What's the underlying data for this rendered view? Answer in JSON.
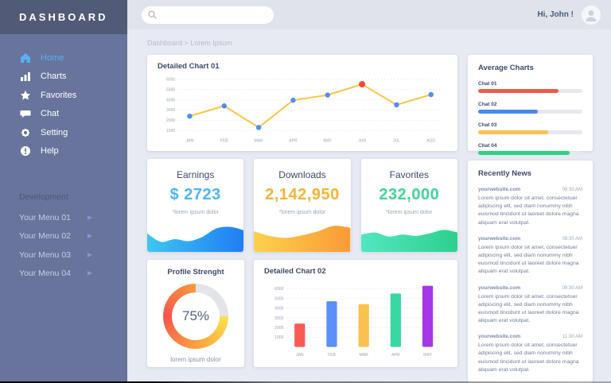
{
  "sidebar": {
    "title": "DASHBOARD",
    "nav": [
      {
        "label": "Home",
        "active": true
      },
      {
        "label": "Charts",
        "active": false
      },
      {
        "label": "Favorites",
        "active": false
      },
      {
        "label": "Chat",
        "active": false
      },
      {
        "label": "Setting",
        "active": false
      },
      {
        "label": "Help",
        "active": false
      }
    ],
    "section_label": "Development",
    "dev_menu": [
      {
        "label": "Your Menu 01"
      },
      {
        "label": "Your Menu 02"
      },
      {
        "label": "Your Menu 03"
      },
      {
        "label": "Your Menu 04"
      }
    ]
  },
  "topbar": {
    "search_value": "",
    "search_placeholder": "",
    "greeting": "Hi, John !"
  },
  "breadcrumb": "Dashboard > Lorem Ipsum",
  "stats": {
    "earnings": {
      "title": "Earnings",
      "value": "$ 2723",
      "note": "*lorem ipsum dolor",
      "value_color": "#4db5f5"
    },
    "downloads": {
      "title": "Downloads",
      "value": "2,142,950",
      "note": "*lorem ipsum dolor",
      "value_color": "#f9b233"
    },
    "favorites": {
      "title": "Favorites",
      "value": "232,000",
      "note": "*lorem ipsum dolor",
      "value_color": "#3ed598"
    }
  },
  "profile": {
    "title": "Profile Strenght",
    "percent_label": "75%",
    "note": "lorem ipsum dolor"
  },
  "news": {
    "title": "Recently News",
    "items": [
      {
        "source": "yourwebsite.com",
        "time": "08:30 AM",
        "text": "Lorem ipsum dolor sit amet, consectetuer adipiscing elit, sed diam nonummy nibh euismod tincidunt ut laoreet dolore magna aliquam erat volutpat."
      },
      {
        "source": "yourwebsite.com",
        "time": "08:30 AM",
        "text": "Lorem ipsum dolor sit amet, consectetuer adipiscing elit, sed diam nonummy nibh euismod tincidunt ut laoreet dolore magna aliquam erat volutpat."
      },
      {
        "source": "yourwebsite.com",
        "time": "08:30 AM",
        "text": "Lorem ipsum dolor sit amet, consectetuer adipiscing elit, sed diam nonummy nibh euismod tincidunt ut laoreet dolore magna aliquam erat volutpat."
      },
      {
        "source": "yourwebsite.com",
        "time": "11:30 AM",
        "text": "Lorem ipsum dolor sit amet, consectetuer adipiscing elit, sed diam nonummy nibh euismod tincidunt ut laoreet dolore magna aliquam erat volutpat."
      }
    ]
  },
  "chart_data": [
    {
      "id": "detailed_chart_01",
      "type": "line",
      "title": "Detailed Chart 01",
      "x": [
        "JAN",
        "FEB",
        "MAR",
        "APR",
        "MAY",
        "JUN",
        "JUL",
        "AUG"
      ],
      "values": [
        2400,
        3400,
        1300,
        3950,
        4450,
        5500,
        3500,
        4500
      ],
      "highlight_index": 5,
      "yticks": [
        6000,
        5000,
        4000,
        3000,
        2000,
        1000
      ],
      "ylim": [
        1000,
        6000
      ],
      "grid": true,
      "line_color": "#fbc546",
      "point_color": "#4f8df9",
      "highlight_color": "#f4493c"
    },
    {
      "id": "average_charts",
      "type": "bar",
      "orientation": "horizontal",
      "title": "Average Charts",
      "max": 100,
      "items": [
        {
          "label": "Chat 01",
          "value": 77,
          "color": "#f4564e"
        },
        {
          "label": "Chat 02",
          "value": 57,
          "color": "#4a86f5"
        },
        {
          "label": "Chat 03",
          "value": 67,
          "color": "#fbc04d"
        },
        {
          "label": "Chat 04",
          "value": 88,
          "color": "#2ed184"
        }
      ]
    },
    {
      "id": "detailed_chart_02",
      "type": "bar",
      "title": "Detailed Chart 02",
      "categories": [
        "JAN",
        "FEB",
        "MAR",
        "APR",
        "MAY"
      ],
      "values": [
        2400,
        4700,
        4400,
        5500,
        6300
      ],
      "colors": [
        "#fa5a55",
        "#5b8ff9",
        "#fbc14d",
        "#38d8a2",
        "#a636e8"
      ],
      "yticks": [
        6000,
        5000,
        4000,
        3000,
        2000,
        1000
      ],
      "ylim": [
        1000,
        6000
      ],
      "grid": true
    },
    {
      "id": "profile_strength_donut",
      "type": "pie",
      "value": 75,
      "track_color": "#e2e4e9",
      "gradient_stops": [
        "#f8e14b",
        "#fba03f",
        "#f4564e",
        "#f79a3e"
      ]
    },
    {
      "id": "earnings_spark",
      "type": "area",
      "values": [
        55,
        30,
        38,
        32,
        45,
        70,
        75,
        65
      ],
      "gradient": [
        "#3ec6f2",
        "#1f7df5"
      ]
    },
    {
      "id": "downloads_spark",
      "type": "area",
      "values": [
        62,
        48,
        42,
        50,
        62,
        78,
        72
      ],
      "gradient": [
        "#fcd24c",
        "#f99a36"
      ]
    },
    {
      "id": "favorites_spark",
      "type": "area",
      "values": [
        52,
        58,
        46,
        52,
        48,
        56,
        66,
        58
      ],
      "gradient": [
        "#53e6c0",
        "#2dd08d"
      ]
    }
  ]
}
